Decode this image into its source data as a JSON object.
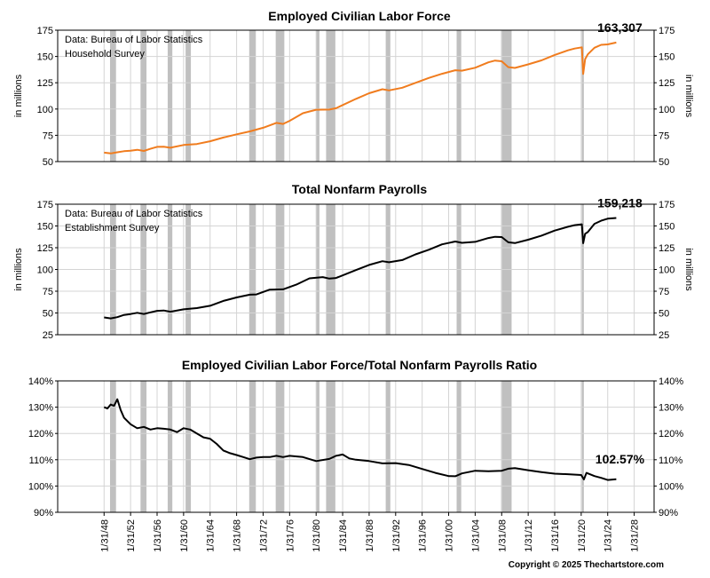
{
  "colors": {
    "recession": "#c0c0c0",
    "grid": "#d4d4d4",
    "series_orange": "#f07c1e",
    "series_black": "#000000"
  },
  "recessions": [
    [
      1948.9,
      1949.8
    ],
    [
      1953.5,
      1954.4
    ],
    [
      1957.6,
      1958.3
    ],
    [
      1960.3,
      1961.1
    ],
    [
      1969.9,
      1970.9
    ],
    [
      1973.9,
      1975.2
    ],
    [
      1980.0,
      1980.5
    ],
    [
      1981.5,
      1982.9
    ],
    [
      1990.5,
      1991.2
    ],
    [
      2001.2,
      2001.9
    ],
    [
      2007.9,
      2009.5
    ],
    [
      2020.1,
      2020.4
    ]
  ],
  "x_axis": {
    "range": [
      1941,
      2031
    ],
    "ticks": [
      1948,
      1952,
      1956,
      1960,
      1964,
      1968,
      1972,
      1976,
      1980,
      1984,
      1988,
      1992,
      1996,
      2000,
      2004,
      2008,
      2012,
      2016,
      2020,
      2024,
      2028
    ],
    "tick_labels": [
      "1/31/48",
      "1/31/52",
      "1/31/56",
      "1/31/60",
      "1/31/64",
      "1/31/68",
      "1/31/72",
      "1/31/76",
      "1/31/80",
      "1/31/84",
      "1/31/88",
      "1/31/92",
      "1/31/96",
      "1/31/00",
      "1/31/04",
      "1/31/08",
      "1/31/12",
      "1/31/16",
      "1/31/20",
      "1/31/24",
      "1/31/28"
    ]
  },
  "copyright": "Copyright © 2025 Thechartstore.com",
  "chart_data": [
    {
      "type": "line",
      "title": "Employed Civilian Labor Force",
      "ylabel": "in millions",
      "ylim": [
        50,
        175
      ],
      "y_ticks": [
        50,
        75,
        100,
        125,
        150,
        175
      ],
      "note": [
        "Data:  Bureau of Labor Statistics",
        "Household Survey"
      ],
      "end_label": "163,307",
      "grid": true,
      "series": [
        {
          "color": "#f07c1e",
          "x": [
            1948,
            1949,
            1950,
            1951,
            1952,
            1953,
            1954,
            1955,
            1956,
            1957,
            1958,
            1960,
            1962,
            1964,
            1966,
            1968,
            1970,
            1972,
            1974,
            1975,
            1976,
            1978,
            1980,
            1982,
            1983,
            1986,
            1988,
            1990,
            1991,
            1993,
            1995,
            1997,
            1999,
            2001,
            2002,
            2004,
            2006,
            2007,
            2008,
            2009,
            2010,
            2012,
            2014,
            2016,
            2018,
            2019,
            2020.1,
            2020.3,
            2020.6,
            2021,
            2022,
            2023,
            2024,
            2025.3
          ],
          "y": [
            58.5,
            57.8,
            58.9,
            59.9,
            60.3,
            61.2,
            60.1,
            62.2,
            64,
            64.1,
            63.2,
            65.8,
            66.7,
            69.3,
            72.9,
            75.9,
            78.7,
            82.2,
            86.8,
            85.8,
            88.8,
            96,
            99.3,
            99.5,
            100.8,
            109.6,
            115,
            118.8,
            117.7,
            120.3,
            124.9,
            129.6,
            133.5,
            136.9,
            136.5,
            139.3,
            144.4,
            146.1,
            145.4,
            139.9,
            139.1,
            142.5,
            146.3,
            151.4,
            155.8,
            157.5,
            158.7,
            133.4,
            147.5,
            152,
            158.3,
            161.1,
            161.5,
            163.3
          ]
        }
      ]
    },
    {
      "type": "line",
      "title": "Total Nonfarm Payrolls",
      "ylabel": "in millions",
      "ylim": [
        25,
        175
      ],
      "y_ticks": [
        25,
        50,
        75,
        100,
        125,
        150,
        175
      ],
      "note": [
        "Data:  Bureau of Labor Statistics",
        "Establishment Survey"
      ],
      "end_label": "159,218",
      "grid": true,
      "series": [
        {
          "color": "#000000",
          "x": [
            1948,
            1949,
            1950,
            1951,
            1952,
            1953,
            1954,
            1955,
            1956,
            1957,
            1958,
            1960,
            1962,
            1964,
            1966,
            1968,
            1970,
            1971,
            1973,
            1975,
            1977,
            1979,
            1981,
            1982,
            1983,
            1986,
            1988,
            1990,
            1991,
            1993,
            1995,
            1997,
            1999,
            2001,
            2002,
            2004,
            2006,
            2007,
            2008,
            2009,
            2010,
            2012,
            2014,
            2016,
            2018,
            2019,
            2020.1,
            2020.3,
            2020.6,
            2021,
            2022,
            2023,
            2024,
            2025.3
          ],
          "y": [
            44.9,
            43.8,
            45.2,
            47.8,
            48.8,
            50.2,
            48.9,
            50.7,
            52.5,
            52.9,
            51.4,
            54.2,
            55.6,
            58.3,
            63.9,
            67.9,
            71,
            71.3,
            76.8,
            77.1,
            82.5,
            89.8,
            91.2,
            89.5,
            90.2,
            99.3,
            105.2,
            109.5,
            108.3,
            110.8,
            117.3,
            122.7,
            128.9,
            132.1,
            130.6,
            131.7,
            136.1,
            137.6,
            137.2,
            131.2,
            130.3,
            134.2,
            138.9,
            144.7,
            149.1,
            150.9,
            151.9,
            130.2,
            141,
            143,
            152.5,
            156,
            158.4,
            159.2
          ]
        }
      ]
    },
    {
      "type": "line",
      "title": "Employed Civilian Labor Force/Total Nonfarm Payrolls Ratio",
      "ylabel": "",
      "ylim": [
        90,
        140
      ],
      "y_ticks": [
        90,
        100,
        110,
        120,
        130,
        140
      ],
      "y_tick_labels": [
        "90%",
        "100%",
        "110%",
        "120%",
        "130%",
        "140%"
      ],
      "note": [],
      "end_label": "102.57%",
      "grid": true,
      "series": [
        {
          "color": "#000000",
          "x": [
            1948,
            1948.5,
            1949,
            1949.5,
            1950,
            1950.5,
            1951,
            1952,
            1953,
            1954,
            1955,
            1956,
            1957,
            1958,
            1959,
            1960,
            1961,
            1962,
            1963,
            1964,
            1965,
            1966,
            1967,
            1968,
            1969,
            1970,
            1971,
            1972,
            1973,
            1974,
            1975,
            1976,
            1978,
            1980,
            1982,
            1983,
            1984,
            1985,
            1986,
            1988,
            1990,
            1992,
            1994,
            1996,
            1998,
            2000,
            2001,
            2002,
            2004,
            2006,
            2008,
            2009,
            2010,
            2012,
            2014,
            2016,
            2018,
            2020,
            2020.4,
            2020.8,
            2022,
            2023,
            2024,
            2025.3
          ],
          "y": [
            130,
            129.5,
            131,
            130.5,
            133,
            129,
            126,
            123.5,
            122,
            122.5,
            121.5,
            122,
            121.8,
            121.5,
            120.5,
            122,
            121.5,
            120,
            118.5,
            118,
            116,
            113.5,
            112.5,
            111.8,
            111,
            110.2,
            110.8,
            111,
            111,
            111.5,
            111,
            111.5,
            111,
            109.5,
            110.3,
            111.5,
            112,
            110.5,
            110,
            109.5,
            108.6,
            108.7,
            108,
            106.5,
            105,
            103.8,
            103.7,
            104.8,
            105.8,
            105.6,
            105.8,
            106.6,
            106.8,
            106,
            105.3,
            104.7,
            104.5,
            104.2,
            102.5,
            105,
            103.8,
            103.1,
            102.3,
            102.57
          ]
        }
      ]
    }
  ]
}
